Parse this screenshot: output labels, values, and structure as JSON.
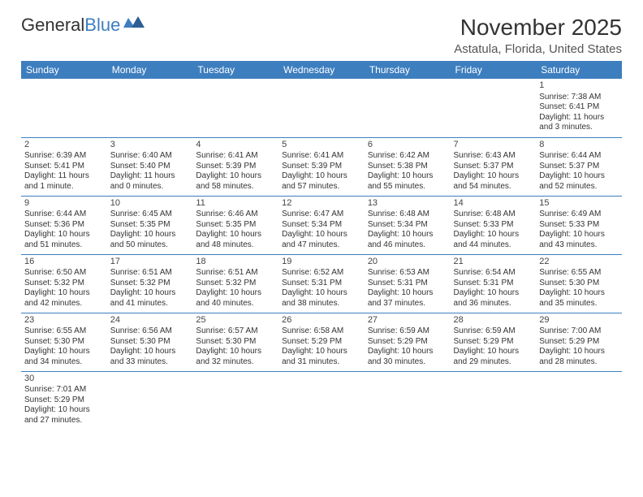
{
  "brand": {
    "name_a": "General",
    "name_b": "Blue"
  },
  "title": "November 2025",
  "subtitle": "Astatula, Florida, United States",
  "colors": {
    "accent": "#3d7ebf",
    "text": "#333333",
    "bg": "#ffffff"
  },
  "day_headers": [
    "Sunday",
    "Monday",
    "Tuesday",
    "Wednesday",
    "Thursday",
    "Friday",
    "Saturday"
  ],
  "calendar": {
    "type": "table",
    "columns": 7,
    "first_weekday_index": 6,
    "days": [
      {
        "n": 1,
        "sunrise": "7:38 AM",
        "sunset": "6:41 PM",
        "daylight": "11 hours and 3 minutes."
      },
      {
        "n": 2,
        "sunrise": "6:39 AM",
        "sunset": "5:41 PM",
        "daylight": "11 hours and 1 minute."
      },
      {
        "n": 3,
        "sunrise": "6:40 AM",
        "sunset": "5:40 PM",
        "daylight": "11 hours and 0 minutes."
      },
      {
        "n": 4,
        "sunrise": "6:41 AM",
        "sunset": "5:39 PM",
        "daylight": "10 hours and 58 minutes."
      },
      {
        "n": 5,
        "sunrise": "6:41 AM",
        "sunset": "5:39 PM",
        "daylight": "10 hours and 57 minutes."
      },
      {
        "n": 6,
        "sunrise": "6:42 AM",
        "sunset": "5:38 PM",
        "daylight": "10 hours and 55 minutes."
      },
      {
        "n": 7,
        "sunrise": "6:43 AM",
        "sunset": "5:37 PM",
        "daylight": "10 hours and 54 minutes."
      },
      {
        "n": 8,
        "sunrise": "6:44 AM",
        "sunset": "5:37 PM",
        "daylight": "10 hours and 52 minutes."
      },
      {
        "n": 9,
        "sunrise": "6:44 AM",
        "sunset": "5:36 PM",
        "daylight": "10 hours and 51 minutes."
      },
      {
        "n": 10,
        "sunrise": "6:45 AM",
        "sunset": "5:35 PM",
        "daylight": "10 hours and 50 minutes."
      },
      {
        "n": 11,
        "sunrise": "6:46 AM",
        "sunset": "5:35 PM",
        "daylight": "10 hours and 48 minutes."
      },
      {
        "n": 12,
        "sunrise": "6:47 AM",
        "sunset": "5:34 PM",
        "daylight": "10 hours and 47 minutes."
      },
      {
        "n": 13,
        "sunrise": "6:48 AM",
        "sunset": "5:34 PM",
        "daylight": "10 hours and 46 minutes."
      },
      {
        "n": 14,
        "sunrise": "6:48 AM",
        "sunset": "5:33 PM",
        "daylight": "10 hours and 44 minutes."
      },
      {
        "n": 15,
        "sunrise": "6:49 AM",
        "sunset": "5:33 PM",
        "daylight": "10 hours and 43 minutes."
      },
      {
        "n": 16,
        "sunrise": "6:50 AM",
        "sunset": "5:32 PM",
        "daylight": "10 hours and 42 minutes."
      },
      {
        "n": 17,
        "sunrise": "6:51 AM",
        "sunset": "5:32 PM",
        "daylight": "10 hours and 41 minutes."
      },
      {
        "n": 18,
        "sunrise": "6:51 AM",
        "sunset": "5:32 PM",
        "daylight": "10 hours and 40 minutes."
      },
      {
        "n": 19,
        "sunrise": "6:52 AM",
        "sunset": "5:31 PM",
        "daylight": "10 hours and 38 minutes."
      },
      {
        "n": 20,
        "sunrise": "6:53 AM",
        "sunset": "5:31 PM",
        "daylight": "10 hours and 37 minutes."
      },
      {
        "n": 21,
        "sunrise": "6:54 AM",
        "sunset": "5:31 PM",
        "daylight": "10 hours and 36 minutes."
      },
      {
        "n": 22,
        "sunrise": "6:55 AM",
        "sunset": "5:30 PM",
        "daylight": "10 hours and 35 minutes."
      },
      {
        "n": 23,
        "sunrise": "6:55 AM",
        "sunset": "5:30 PM",
        "daylight": "10 hours and 34 minutes."
      },
      {
        "n": 24,
        "sunrise": "6:56 AM",
        "sunset": "5:30 PM",
        "daylight": "10 hours and 33 minutes."
      },
      {
        "n": 25,
        "sunrise": "6:57 AM",
        "sunset": "5:30 PM",
        "daylight": "10 hours and 32 minutes."
      },
      {
        "n": 26,
        "sunrise": "6:58 AM",
        "sunset": "5:29 PM",
        "daylight": "10 hours and 31 minutes."
      },
      {
        "n": 27,
        "sunrise": "6:59 AM",
        "sunset": "5:29 PM",
        "daylight": "10 hours and 30 minutes."
      },
      {
        "n": 28,
        "sunrise": "6:59 AM",
        "sunset": "5:29 PM",
        "daylight": "10 hours and 29 minutes."
      },
      {
        "n": 29,
        "sunrise": "7:00 AM",
        "sunset": "5:29 PM",
        "daylight": "10 hours and 28 minutes."
      },
      {
        "n": 30,
        "sunrise": "7:01 AM",
        "sunset": "5:29 PM",
        "daylight": "10 hours and 27 minutes."
      }
    ]
  },
  "labels": {
    "sunrise": "Sunrise:",
    "sunset": "Sunset:",
    "daylight": "Daylight:"
  }
}
